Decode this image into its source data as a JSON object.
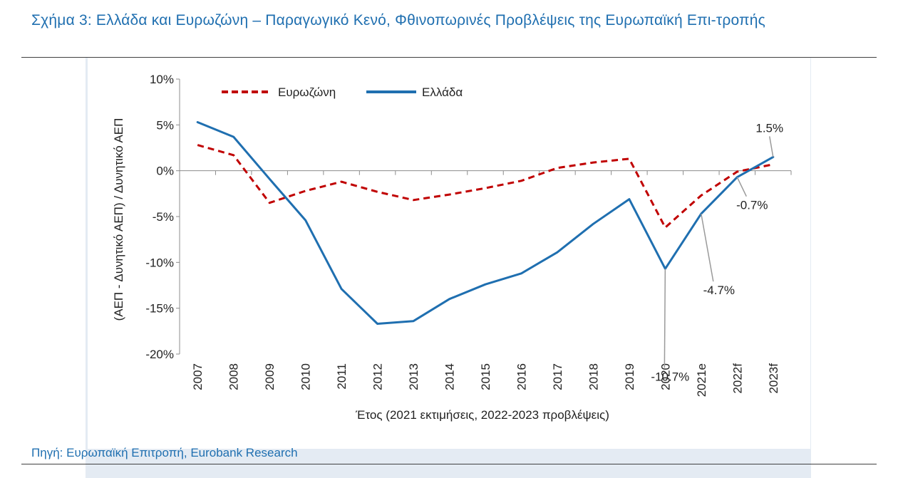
{
  "title": "Σχήμα 3: Ελλάδα και Ευρωζώνη – Παραγωγικό Κενό, Φθινοπωρινές Προβλέψεις της Ευρωπαϊκή Επι-τροπής",
  "source": "Πηγή: Ευρωπαϊκή Επιτροπή, Eurobank Research",
  "chart_data": {
    "type": "line",
    "categories": [
      "2007",
      "2008",
      "2009",
      "2010",
      "2011",
      "2012",
      "2013",
      "2014",
      "2015",
      "2016",
      "2017",
      "2018",
      "2019",
      "2020",
      "2021e",
      "2022f",
      "2023f"
    ],
    "series": [
      {
        "name": "Ευρωζώνη",
        "color": "#c00000",
        "style": "dashed",
        "values": [
          2.8,
          1.7,
          -3.5,
          -2.2,
          -1.2,
          -2.3,
          -3.2,
          -2.6,
          -1.9,
          -1.1,
          0.3,
          0.9,
          1.3,
          -6.2,
          -2.7,
          -0.1,
          0.7
        ]
      },
      {
        "name": "Ελλάδα",
        "color": "#1f6fb0",
        "style": "solid",
        "values": [
          5.3,
          3.7,
          -0.9,
          -5.4,
          -12.9,
          -16.7,
          -16.4,
          -14.0,
          -12.4,
          -11.2,
          -8.9,
          -5.8,
          -3.1,
          -10.7,
          -4.7,
          -0.7,
          1.5
        ]
      }
    ],
    "ylim": [
      -20,
      10
    ],
    "yticks": [
      10,
      5,
      0,
      -5,
      -10,
      -15,
      -20
    ],
    "ytick_labels": [
      "10%",
      "5%",
      "0%",
      "-5%",
      "-10%",
      "-15%",
      "-20%"
    ],
    "ylabel": "(ΑΕΠ - Δυνητικό ΑΕΠ) / Δυνητικό ΑΕΠ",
    "xlabel": "Έτος (2021 εκτιμήσεις, 2022-2023 προβλέψεις)",
    "legend_position": "top-left",
    "annotations": [
      {
        "text": "1.5%",
        "series": 1,
        "index": 16
      },
      {
        "text": "-0.7%",
        "series": 1,
        "index": 15
      },
      {
        "text": "-4.7%",
        "series": 1,
        "index": 14
      },
      {
        "text": "-10.7%",
        "series": 1,
        "index": 13
      }
    ]
  }
}
